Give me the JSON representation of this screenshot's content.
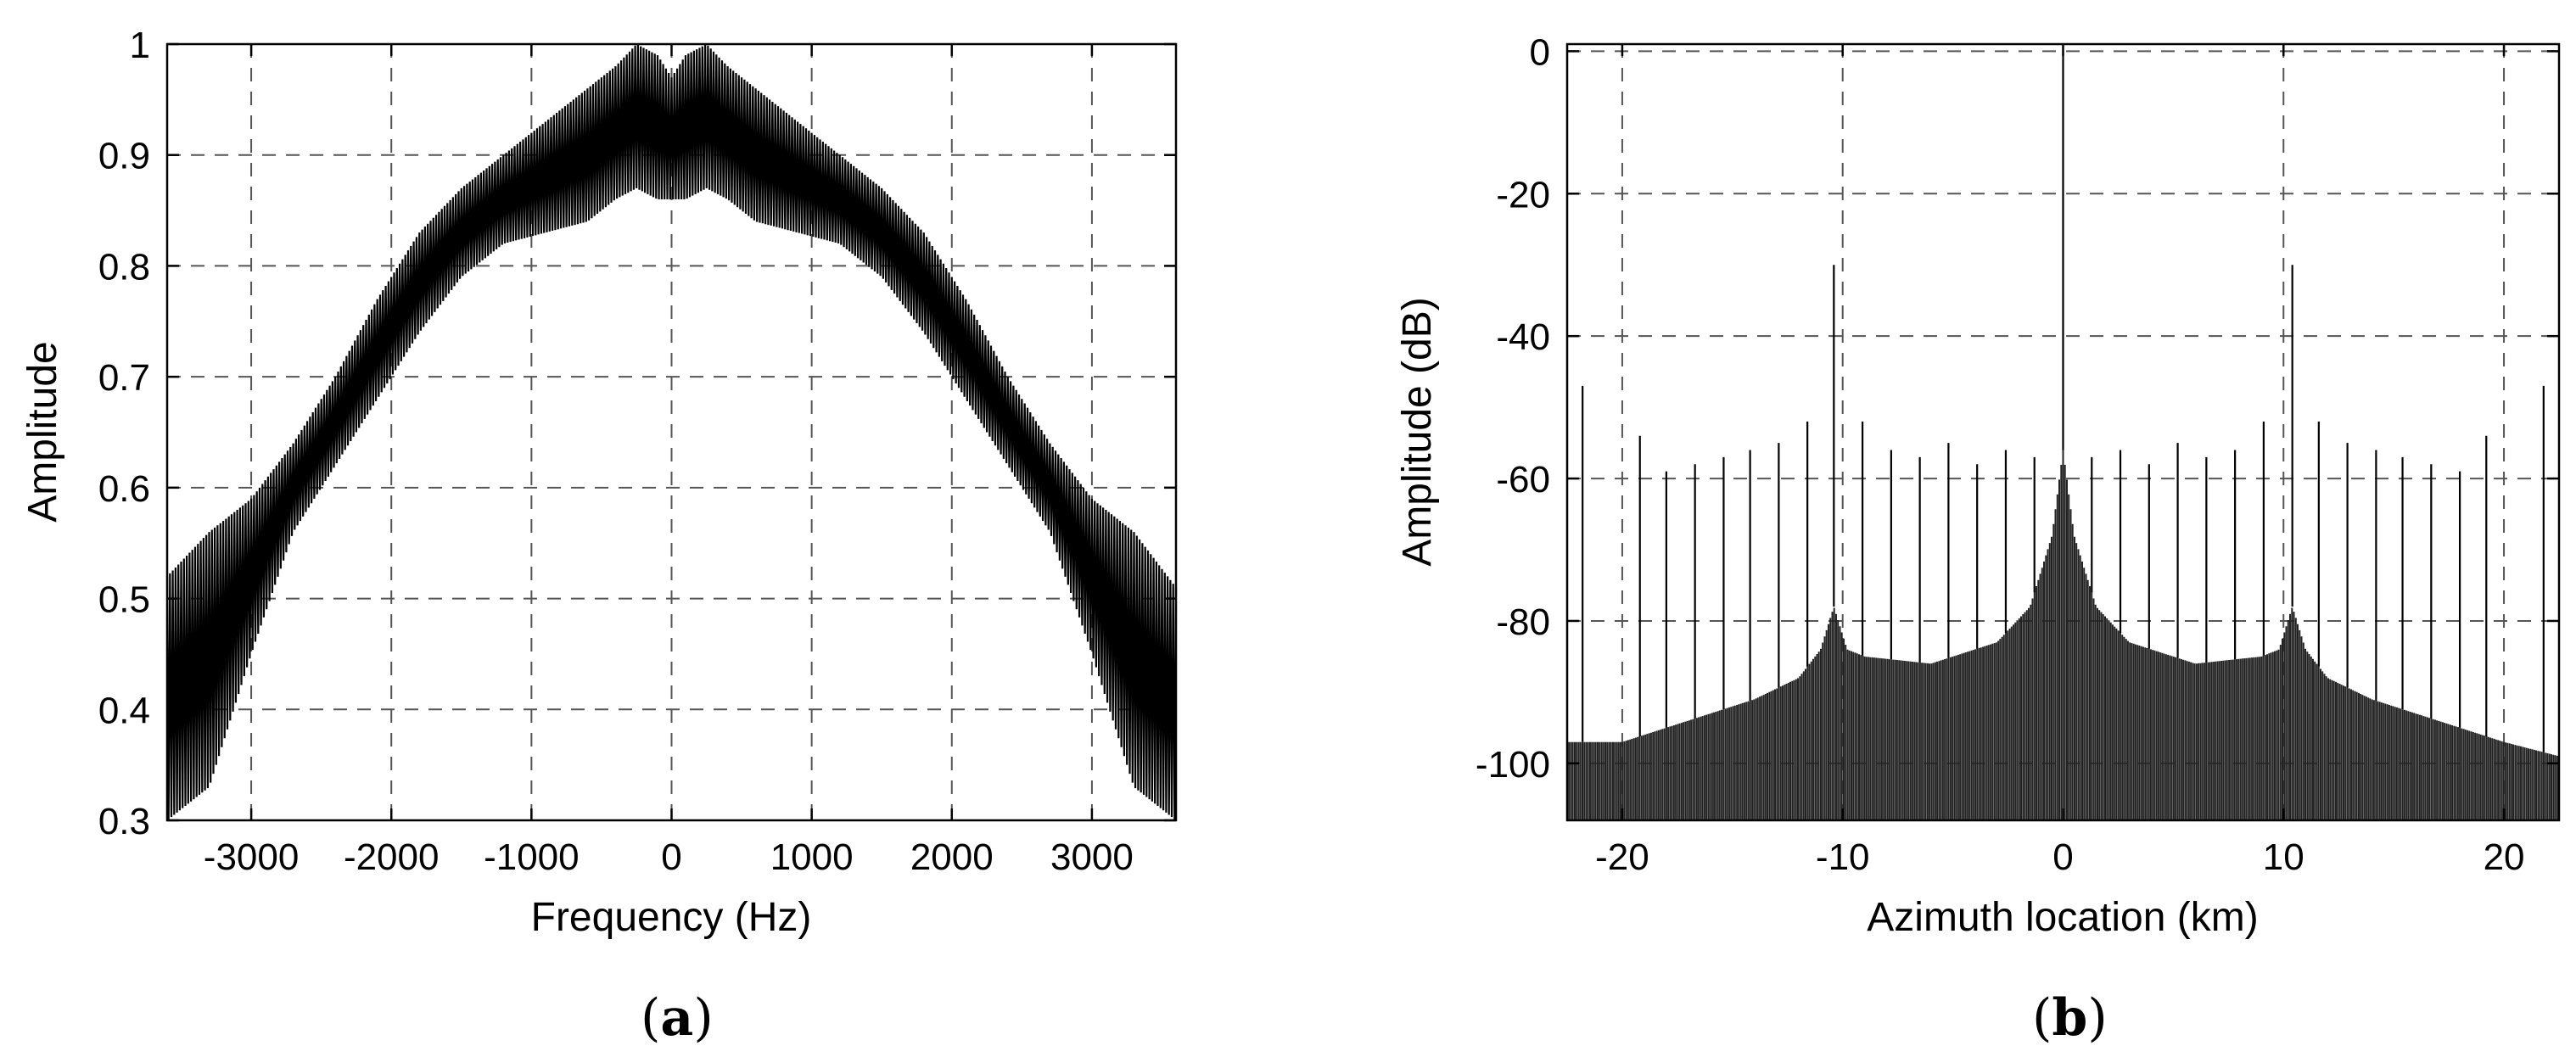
{
  "chart_data": [
    {
      "type": "line",
      "panel_label_open": "(",
      "panel_label_letter": "a",
      "panel_label_close": ")",
      "title": "",
      "xlabel": "Frequency (Hz)",
      "ylabel": "Amplitude",
      "xlim": [
        -3600,
        3600
      ],
      "ylim": [
        0.3,
        1.0
      ],
      "xticks": [
        -3000,
        -2000,
        -1000,
        0,
        1000,
        2000,
        3000
      ],
      "yticks": [
        0.3,
        0.4,
        0.5,
        0.6,
        0.7,
        0.8,
        0.9,
        1.0
      ],
      "xtick_labels": [
        "-3000",
        "-2000",
        "-1000",
        "0",
        "1000",
        "2000",
        "3000"
      ],
      "ytick_labels": [
        "0.3",
        "0.4",
        "0.5",
        "0.6",
        "0.7",
        "0.8",
        "0.9",
        "1"
      ],
      "grid": true,
      "envelope": {
        "x": [
          -3600,
          -3300,
          -3000,
          -2700,
          -2400,
          -2100,
          -1800,
          -1500,
          -1200,
          -900,
          -600,
          -400,
          -250,
          -100,
          0,
          100,
          250,
          400,
          600,
          900,
          1200,
          1500,
          1800,
          2100,
          2400,
          2700,
          3000,
          3300,
          3600
        ],
        "upper": [
          0.52,
          0.56,
          0.59,
          0.64,
          0.7,
          0.77,
          0.83,
          0.87,
          0.9,
          0.93,
          0.96,
          0.98,
          1.0,
          0.99,
          0.97,
          0.99,
          1.0,
          0.98,
          0.96,
          0.93,
          0.9,
          0.87,
          0.83,
          0.77,
          0.7,
          0.64,
          0.59,
          0.56,
          0.51
        ],
        "lower": [
          0.3,
          0.33,
          0.45,
          0.56,
          0.62,
          0.68,
          0.74,
          0.79,
          0.82,
          0.83,
          0.84,
          0.86,
          0.87,
          0.86,
          0.86,
          0.86,
          0.87,
          0.86,
          0.84,
          0.83,
          0.82,
          0.79,
          0.74,
          0.68,
          0.62,
          0.56,
          0.45,
          0.33,
          0.3
        ]
      }
    },
    {
      "type": "line",
      "panel_label_open": "(",
      "panel_label_letter": "b",
      "panel_label_close": ")",
      "title": "",
      "xlabel": "Azimuth location (km)",
      "ylabel": "Amplitude (dB)",
      "xlim": [
        -22.5,
        22.5
      ],
      "ylim": [
        -108,
        1
      ],
      "xticks": [
        -20,
        -10,
        0,
        10,
        20
      ],
      "yticks": [
        -100,
        -80,
        -60,
        -40,
        -20,
        0
      ],
      "xtick_labels": [
        "-20",
        "-10",
        "0",
        "10",
        "20"
      ],
      "ytick_labels": [
        "-100",
        "-80",
        "-60",
        "-40",
        "-20",
        "0"
      ],
      "grid": true,
      "peaks": [
        {
          "x": -21.8,
          "y": -47
        },
        {
          "x": -19.2,
          "y": -54
        },
        {
          "x": -18.0,
          "y": -59
        },
        {
          "x": -16.7,
          "y": -58
        },
        {
          "x": -15.4,
          "y": -57
        },
        {
          "x": -14.2,
          "y": -56
        },
        {
          "x": -12.9,
          "y": -55
        },
        {
          "x": -11.6,
          "y": -52
        },
        {
          "x": -10.4,
          "y": -30
        },
        {
          "x": -9.1,
          "y": -52
        },
        {
          "x": -7.8,
          "y": -56
        },
        {
          "x": -6.5,
          "y": -57
        },
        {
          "x": -5.2,
          "y": -55
        },
        {
          "x": -3.9,
          "y": -58
        },
        {
          "x": -2.6,
          "y": -56
        },
        {
          "x": -1.3,
          "y": -57
        },
        {
          "x": 0.0,
          "y": 0
        },
        {
          "x": 1.3,
          "y": -57
        },
        {
          "x": 2.6,
          "y": -56
        },
        {
          "x": 3.9,
          "y": -58
        },
        {
          "x": 5.2,
          "y": -55
        },
        {
          "x": 6.5,
          "y": -57
        },
        {
          "x": 7.8,
          "y": -56
        },
        {
          "x": 9.1,
          "y": -52
        },
        {
          "x": 10.4,
          "y": -30
        },
        {
          "x": 11.6,
          "y": -52
        },
        {
          "x": 12.9,
          "y": -55
        },
        {
          "x": 14.2,
          "y": -56
        },
        {
          "x": 15.4,
          "y": -57
        },
        {
          "x": 16.7,
          "y": -58
        },
        {
          "x": 18.0,
          "y": -59
        },
        {
          "x": 19.2,
          "y": -54
        },
        {
          "x": 21.8,
          "y": -47
        }
      ],
      "floor": {
        "x": [
          -22.5,
          -20,
          -17,
          -14,
          -12,
          -11,
          -10.4,
          -9.8,
          -9,
          -6,
          -3,
          -1.5,
          -0.5,
          0,
          0.5,
          1.5,
          3,
          6,
          9,
          9.8,
          10.4,
          11,
          12,
          14,
          17,
          20,
          22.5
        ],
        "upper": [
          -97,
          -97,
          -94,
          -91,
          -88,
          -84,
          -78,
          -84,
          -85,
          -86,
          -83,
          -78,
          -68,
          -56,
          -68,
          -78,
          -83,
          -86,
          -85,
          -84,
          -78,
          -84,
          -88,
          -91,
          -94,
          -97,
          -99
        ]
      }
    }
  ]
}
